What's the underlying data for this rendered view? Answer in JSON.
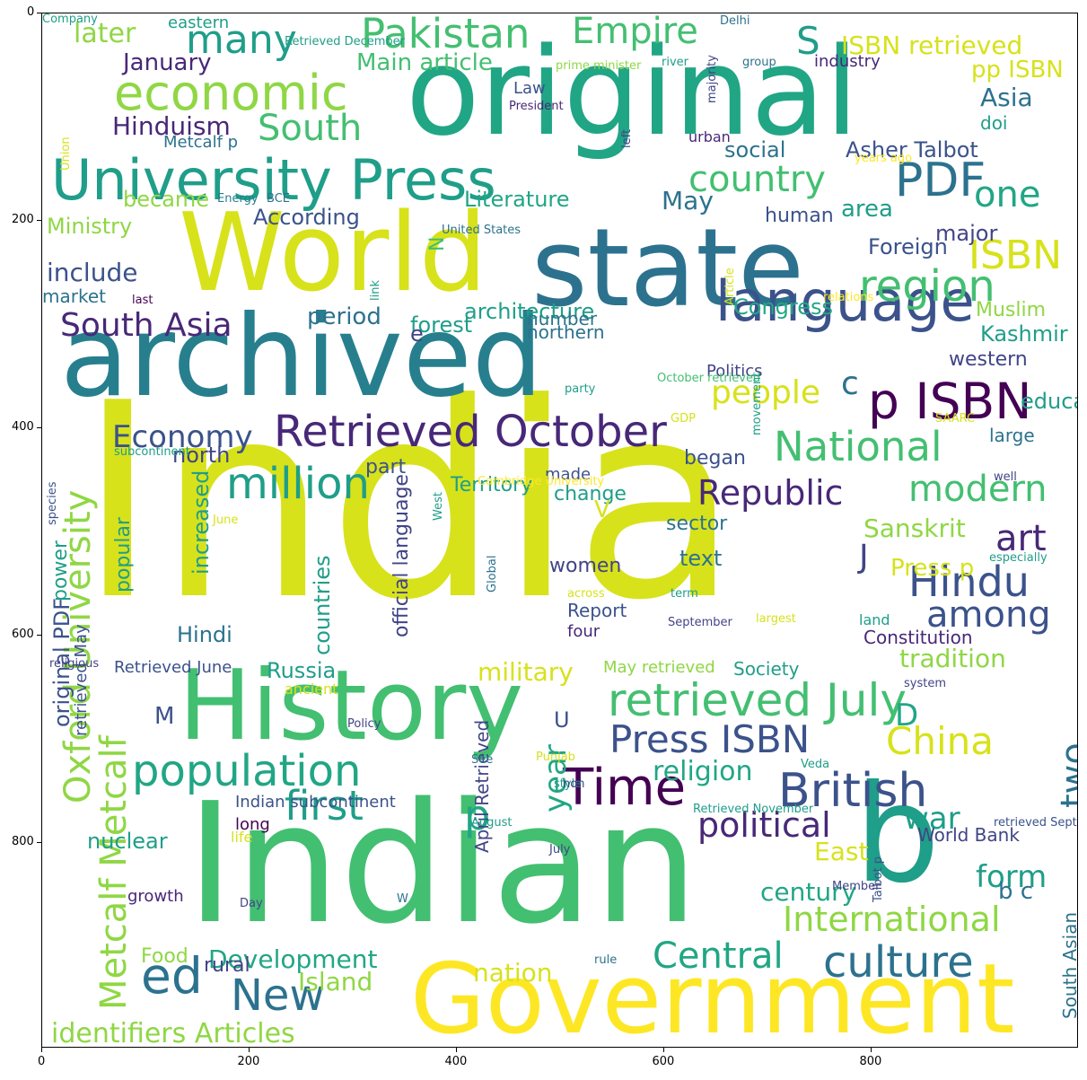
{
  "axes": {
    "x_ticks": [
      "0",
      "200",
      "400",
      "600",
      "800"
    ],
    "y_ticks": [
      "0",
      "200",
      "400",
      "600",
      "800"
    ]
  },
  "palette": {
    "yellow": "#d7e21b",
    "bright_yellow": "#fde725",
    "light_green": "#8fd744",
    "green": "#43bf71",
    "teal_green": "#21a685",
    "teal": "#1f9e89",
    "blue_teal": "#277f8e",
    "blue": "#2c728e",
    "slate": "#3b528b",
    "indigo": "#414487",
    "purple": "#482878",
    "dark_purple": "#440154"
  },
  "words": [
    {
      "text": "India",
      "color": "yellow",
      "size": 300
    },
    {
      "text": "Indian",
      "color": "green",
      "size": 185
    },
    {
      "text": "original",
      "color": "teal_green",
      "size": 135
    },
    {
      "text": "World",
      "color": "yellow",
      "size": 120
    },
    {
      "text": "state",
      "color": "blue",
      "size": 120
    },
    {
      "text": "archived",
      "color": "blue_teal",
      "size": 125
    },
    {
      "text": "History",
      "color": "green",
      "size": 108
    },
    {
      "text": "Government",
      "color": "bright_yellow",
      "size": 108
    },
    {
      "text": "b",
      "color": "teal",
      "size": 150
    },
    {
      "text": "University Press",
      "color": "teal",
      "size": 62
    },
    {
      "text": "economic",
      "color": "light_green",
      "size": 54
    },
    {
      "text": "language",
      "color": "slate",
      "size": 62
    },
    {
      "text": "Pakistan",
      "color": "green",
      "size": 45
    },
    {
      "text": "Empire",
      "color": "green",
      "size": 40
    },
    {
      "text": "many",
      "color": "teal",
      "size": 44
    },
    {
      "text": "S",
      "color": "teal",
      "size": 42
    },
    {
      "text": "later",
      "color": "light_green",
      "size": 30
    },
    {
      "text": "PDF",
      "color": "blue",
      "size": 52
    },
    {
      "text": "South",
      "color": "green",
      "size": 40
    },
    {
      "text": "Hinduism",
      "color": "purple",
      "size": 28
    },
    {
      "text": "region",
      "color": "green",
      "size": 48
    },
    {
      "text": "ISBN",
      "color": "yellow",
      "size": 44
    },
    {
      "text": "one",
      "color": "teal_green",
      "size": 40
    },
    {
      "text": "p ISBN",
      "color": "dark_purple",
      "size": 55
    },
    {
      "text": "Retrieved October",
      "color": "purple",
      "size": 48
    },
    {
      "text": "National",
      "color": "green",
      "size": 45
    },
    {
      "text": "million",
      "color": "teal",
      "size": 48
    },
    {
      "text": "Republic",
      "color": "purple",
      "size": 38
    },
    {
      "text": "modern",
      "color": "green",
      "size": 40
    },
    {
      "text": "art",
      "color": "purple",
      "size": 40
    },
    {
      "text": "Hindu",
      "color": "slate",
      "size": 46
    },
    {
      "text": "among",
      "color": "slate",
      "size": 40
    },
    {
      "text": "retrieved July",
      "color": "green",
      "size": 50
    },
    {
      "text": "China",
      "color": "yellow",
      "size": 42
    },
    {
      "text": "Press ISBN",
      "color": "slate",
      "size": 42
    },
    {
      "text": "British",
      "color": "slate",
      "size": 52
    },
    {
      "text": "Time",
      "color": "dark_purple",
      "size": 56
    },
    {
      "text": "population",
      "color": "teal_green",
      "size": 48
    },
    {
      "text": "first",
      "color": "teal",
      "size": 45
    },
    {
      "text": "political",
      "color": "purple",
      "size": 38
    },
    {
      "text": "culture",
      "color": "blue",
      "size": 48
    },
    {
      "text": "Central",
      "color": "teal_green",
      "size": 40
    },
    {
      "text": "International",
      "color": "light_green",
      "size": 38
    },
    {
      "text": "New",
      "color": "blue",
      "size": 48
    },
    {
      "text": "ed",
      "color": "blue",
      "size": 55
    },
    {
      "text": "identifiers Articles",
      "color": "light_green",
      "size": 30
    },
    {
      "text": "country",
      "color": "green",
      "size": 40
    },
    {
      "text": "South Asia",
      "color": "purple",
      "size": 36
    },
    {
      "text": "Economy",
      "color": "slate",
      "size": 34
    },
    {
      "text": "people",
      "color": "yellow",
      "size": 36
    },
    {
      "text": "Oxford University",
      "color": "light_green",
      "size": 40
    },
    {
      "text": "Metcalf Metcalf",
      "color": "light_green",
      "size": 40
    },
    {
      "text": "two",
      "color": "blue",
      "size": 40
    },
    {
      "text": "year",
      "color": "teal_green",
      "size": 34
    },
    {
      "text": "war",
      "color": "teal",
      "size": 34
    },
    {
      "text": "form",
      "color": "teal",
      "size": 34
    },
    {
      "text": "Development",
      "color": "teal_green",
      "size": 28
    },
    {
      "text": "nation",
      "color": "yellow",
      "size": 28
    },
    {
      "text": "Island",
      "color": "light_green",
      "size": 28
    },
    {
      "text": "century",
      "color": "teal_green",
      "size": 28
    },
    {
      "text": "religion",
      "color": "teal_green",
      "size": 30
    },
    {
      "text": "military",
      "color": "yellow",
      "size": 28
    },
    {
      "text": "tradition",
      "color": "light_green",
      "size": 28
    },
    {
      "text": "Sanskrit",
      "color": "light_green",
      "size": 28
    },
    {
      "text": "Russia",
      "color": "teal",
      "size": 24
    },
    {
      "text": "Hindi",
      "color": "blue",
      "size": 24
    },
    {
      "text": "nuclear",
      "color": "teal",
      "size": 24
    },
    {
      "text": "East",
      "color": "yellow",
      "size": 28
    },
    {
      "text": "ISBN retrieved",
      "color": "yellow",
      "size": 28
    },
    {
      "text": "January",
      "color": "purple",
      "size": 26
    },
    {
      "text": "Main article",
      "color": "green",
      "size": 26
    },
    {
      "text": "pp ISBN",
      "color": "yellow",
      "size": 26
    },
    {
      "text": "Asia",
      "color": "blue",
      "size": 28
    },
    {
      "text": "Asher Talbot",
      "color": "slate",
      "size": 24
    },
    {
      "text": "social",
      "color": "blue",
      "size": 24
    },
    {
      "text": "Metcalf p",
      "color": "blue",
      "size": 18
    },
    {
      "text": "became",
      "color": "light_green",
      "size": 24
    },
    {
      "text": "Literature",
      "color": "teal_green",
      "size": 24
    },
    {
      "text": "May",
      "color": "blue",
      "size": 28
    },
    {
      "text": "Ministry",
      "color": "light_green",
      "size": 24
    },
    {
      "text": "According",
      "color": "slate",
      "size": 24
    },
    {
      "text": "area",
      "color": "teal",
      "size": 26
    },
    {
      "text": "major",
      "color": "indigo",
      "size": 24
    },
    {
      "text": "human",
      "color": "slate",
      "size": 22
    },
    {
      "text": "Foreign",
      "color": "slate",
      "size": 24
    },
    {
      "text": "include",
      "color": "slate",
      "size": 28
    },
    {
      "text": "market",
      "color": "blue",
      "size": 20
    },
    {
      "text": "architecture",
      "color": "teal",
      "size": 24
    },
    {
      "text": "Congress",
      "color": "teal_green",
      "size": 24
    },
    {
      "text": "forest",
      "color": "teal",
      "size": 24
    },
    {
      "text": "number",
      "color": "blue",
      "size": 20
    },
    {
      "text": "period",
      "color": "blue",
      "size": 26
    },
    {
      "text": "northern",
      "color": "blue",
      "size": 20
    },
    {
      "text": "e",
      "color": "indigo",
      "size": 24
    },
    {
      "text": "Muslim",
      "color": "light_green",
      "size": 22
    },
    {
      "text": "Kashmir",
      "color": "teal",
      "size": 24
    },
    {
      "text": "western",
      "color": "indigo",
      "size": 22
    },
    {
      "text": "Politics",
      "color": "indigo",
      "size": 18
    },
    {
      "text": "c",
      "color": "blue",
      "size": 36
    },
    {
      "text": "education",
      "color": "teal",
      "size": 24
    },
    {
      "text": "part",
      "color": "slate",
      "size": 22
    },
    {
      "text": "north",
      "color": "indigo",
      "size": 24
    },
    {
      "text": "began",
      "color": "slate",
      "size": 22
    },
    {
      "text": "large",
      "color": "blue",
      "size": 20
    },
    {
      "text": "made",
      "color": "slate",
      "size": 18
    },
    {
      "text": "Territory",
      "color": "teal",
      "size": 22
    },
    {
      "text": "change",
      "color": "teal",
      "size": 22
    },
    {
      "text": "sector",
      "color": "blue",
      "size": 22
    },
    {
      "text": "J",
      "color": "indigo",
      "size": 36
    },
    {
      "text": "Press p",
      "color": "yellow",
      "size": 26
    },
    {
      "text": "text",
      "color": "blue",
      "size": 24
    },
    {
      "text": "women",
      "color": "indigo",
      "size": 22
    },
    {
      "text": "power",
      "color": "teal",
      "size": 22
    },
    {
      "text": "popular",
      "color": "teal",
      "size": 22
    },
    {
      "text": "increased",
      "color": "teal",
      "size": 24
    },
    {
      "text": "countries",
      "color": "teal",
      "size": 24
    },
    {
      "text": "official language",
      "color": "indigo",
      "size": 22
    },
    {
      "text": "original PDF",
      "color": "slate",
      "size": 24
    },
    {
      "text": "retrieved May",
      "color": "slate",
      "size": 18
    },
    {
      "text": "Report",
      "color": "slate",
      "size": 20
    },
    {
      "text": "four",
      "color": "purple",
      "size": 18
    },
    {
      "text": "Constitution",
      "color": "purple",
      "size": 20
    },
    {
      "text": "Society",
      "color": "teal",
      "size": 20
    },
    {
      "text": "May retrieved",
      "color": "light_green",
      "size": 18
    },
    {
      "text": "Retrieved June",
      "color": "slate",
      "size": 18
    },
    {
      "text": "ancient",
      "color": "yellow",
      "size": 16
    },
    {
      "text": "M",
      "color": "slate",
      "size": 26
    },
    {
      "text": "U",
      "color": "slate",
      "size": 24
    },
    {
      "text": "D",
      "color": "teal_green",
      "size": 34
    },
    {
      "text": "p",
      "color": "teal_green",
      "size": 46
    },
    {
      "text": "V",
      "color": "yellow",
      "size": 26
    },
    {
      "text": "N",
      "color": "green",
      "size": 22
    },
    {
      "text": "Indian subcontinent",
      "color": "slate",
      "size": 18
    },
    {
      "text": "long",
      "color": "dark_purple",
      "size": 18
    },
    {
      "text": "life",
      "color": "yellow",
      "size": 16
    },
    {
      "text": "World Bank",
      "color": "indigo",
      "size": 20
    },
    {
      "text": "b c",
      "color": "blue",
      "size": 26
    },
    {
      "text": "growth",
      "color": "purple",
      "size": 18
    },
    {
      "text": "Food",
      "color": "light_green",
      "size": 22
    },
    {
      "text": "rural",
      "color": "indigo",
      "size": 22
    },
    {
      "text": "April Retrieved",
      "color": "indigo",
      "size": 20
    },
    {
      "text": "South Asian",
      "color": "blue",
      "size": 20
    },
    {
      "text": "Law",
      "color": "slate",
      "size": 18
    },
    {
      "text": "urban",
      "color": "purple",
      "size": 16
    },
    {
      "text": "doi",
      "color": "teal",
      "size": 20
    },
    {
      "text": "industry",
      "color": "purple",
      "size": 18
    },
    {
      "text": "eastern",
      "color": "teal",
      "size": 18
    },
    {
      "text": "Retrieved December",
      "color": "teal",
      "size": 13
    },
    {
      "text": "Delhi",
      "color": "blue",
      "size": 13
    },
    {
      "text": "prime minister",
      "color": "light_green",
      "size": 13
    },
    {
      "text": "river",
      "color": "teal",
      "size": 13
    },
    {
      "text": "group",
      "color": "blue",
      "size": 13
    },
    {
      "text": "President",
      "color": "purple",
      "size": 13
    },
    {
      "text": "majority",
      "color": "indigo",
      "size": 13
    },
    {
      "text": "left",
      "color": "indigo",
      "size": 13
    },
    {
      "text": "years ago",
      "color": "bright_yellow",
      "size": 13
    },
    {
      "text": "Union",
      "color": "yellow",
      "size": 13
    },
    {
      "text": "Energy",
      "color": "blue_teal",
      "size": 13
    },
    {
      "text": "BCE",
      "color": "blue",
      "size": 13
    },
    {
      "text": "United States",
      "color": "blue",
      "size": 13
    },
    {
      "text": "last",
      "color": "dark_purple",
      "size": 13
    },
    {
      "text": "link",
      "color": "teal",
      "size": 13
    },
    {
      "text": "Article",
      "color": "yellow",
      "size": 13
    },
    {
      "text": "relations",
      "color": "bright_yellow",
      "size": 13
    },
    {
      "text": "October retrieved",
      "color": "green",
      "size": 13
    },
    {
      "text": "party",
      "color": "teal",
      "size": 13
    },
    {
      "text": "GDP",
      "color": "yellow",
      "size": 13
    },
    {
      "text": "movement",
      "color": "teal",
      "size": 13
    },
    {
      "text": "SAARC",
      "color": "yellow",
      "size": 13
    },
    {
      "text": "subcontinent",
      "color": "teal",
      "size": 13
    },
    {
      "text": "species",
      "color": "slate",
      "size": 13
    },
    {
      "text": "Cambridge University",
      "color": "bright_yellow",
      "size": 13
    },
    {
      "text": "well",
      "color": "indigo",
      "size": 13
    },
    {
      "text": "West",
      "color": "teal",
      "size": 13
    },
    {
      "text": "June",
      "color": "yellow",
      "size": 13
    },
    {
      "text": "Global",
      "color": "blue",
      "size": 13
    },
    {
      "text": "especially",
      "color": "teal",
      "size": 13
    },
    {
      "text": "across",
      "color": "yellow",
      "size": 13
    },
    {
      "text": "term",
      "color": "teal",
      "size": 13
    },
    {
      "text": "September",
      "color": "indigo",
      "size": 13
    },
    {
      "text": "largest",
      "color": "yellow",
      "size": 13
    },
    {
      "text": "land",
      "color": "teal",
      "size": 16
    },
    {
      "text": "religious",
      "color": "indigo",
      "size": 13
    },
    {
      "text": "system",
      "color": "indigo",
      "size": 13
    },
    {
      "text": "Policy",
      "color": "indigo",
      "size": 13
    },
    {
      "text": "See",
      "color": "blue",
      "size": 13
    },
    {
      "text": "Punjab",
      "color": "yellow",
      "size": 13
    },
    {
      "text": "style",
      "color": "teal",
      "size": 13
    },
    {
      "text": "non",
      "color": "indigo",
      "size": 13
    },
    {
      "text": "Veda",
      "color": "teal",
      "size": 13
    },
    {
      "text": "Retrieved November",
      "color": "teal",
      "size": 13
    },
    {
      "text": "August",
      "color": "teal",
      "size": 13
    },
    {
      "text": "July",
      "color": "indigo",
      "size": 13
    },
    {
      "text": "retrieved September",
      "color": "slate",
      "size": 13
    },
    {
      "text": "Member",
      "color": "indigo",
      "size": 13
    },
    {
      "text": "Talbot p",
      "color": "slate",
      "size": 13
    },
    {
      "text": "Day",
      "color": "indigo",
      "size": 13
    },
    {
      "text": "W",
      "color": "blue",
      "size": 13
    },
    {
      "text": "rule",
      "color": "blue",
      "size": 13
    },
    {
      "text": "Company",
      "color": "teal",
      "size": 13
    }
  ]
}
